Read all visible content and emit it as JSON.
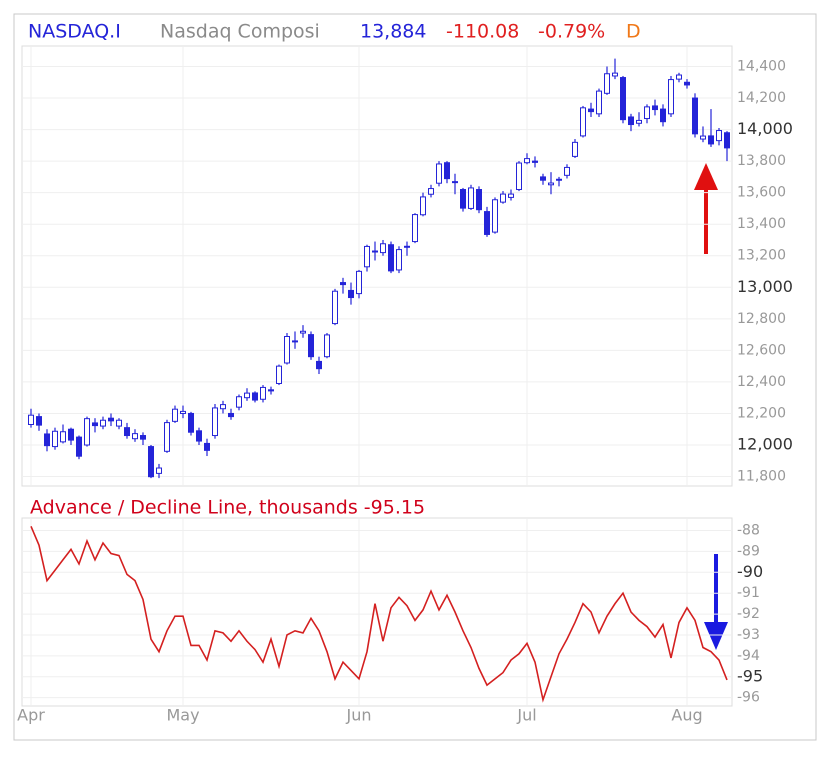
{
  "header": {
    "symbol": "NASDAQ.I",
    "name": "Nasdaq Composi",
    "last": "13,884",
    "change": "-110.08",
    "change_pct": "-0.79%",
    "interval": "D"
  },
  "chart_data": [
    {
      "type": "candlestick",
      "color": "#2424d8",
      "grid": true,
      "open": [
        12130,
        12180,
        12070,
        11990,
        12020,
        12100,
        12050,
        12000,
        12140,
        12120,
        12170,
        12120,
        12110,
        12040,
        12060,
        11990,
        11820,
        11960,
        12150,
        12200,
        12200,
        12090,
        12010,
        12060,
        12230,
        12200,
        12240,
        12300,
        12330,
        12290,
        12350,
        12390,
        12520,
        12660,
        12710,
        12700,
        12530,
        12560,
        12770,
        13030,
        12980,
        12960,
        13130,
        13230,
        13220,
        13270,
        13110,
        13260,
        13290,
        13460,
        13590,
        13660,
        13790,
        13670,
        13620,
        13500,
        13620,
        13480,
        13350,
        13540,
        13570,
        13620,
        13790,
        13800,
        13700,
        13650,
        13680,
        13710,
        13830,
        13960,
        14130,
        14100,
        14230,
        14340,
        14330,
        14080,
        14040,
        14070,
        14150,
        14130,
        14100,
        14320,
        14300,
        14200,
        13940,
        13960,
        13930,
        13980
      ],
      "high": [
        12230,
        12200,
        12100,
        12110,
        12130,
        12110,
        12060,
        12180,
        12170,
        12180,
        12200,
        12170,
        12140,
        12100,
        12080,
        12000,
        11880,
        12160,
        12250,
        12250,
        12210,
        12110,
        12040,
        12260,
        12280,
        12230,
        12320,
        12360,
        12340,
        12380,
        12370,
        12510,
        12710,
        12720,
        12760,
        12720,
        12560,
        12710,
        12990,
        13060,
        13030,
        13110,
        13270,
        13290,
        13300,
        13290,
        13260,
        13290,
        13470,
        13600,
        13650,
        13800,
        13800,
        13720,
        13630,
        13650,
        13640,
        13510,
        13570,
        13610,
        13620,
        13800,
        13850,
        13830,
        13720,
        13730,
        13700,
        13780,
        13940,
        14150,
        14170,
        14260,
        14400,
        14450,
        14340,
        14100,
        14110,
        14160,
        14190,
        14160,
        14340,
        14360,
        14320,
        14230,
        14020,
        14130,
        14010,
        13990
      ],
      "low": [
        12110,
        12090,
        11960,
        11970,
        12010,
        12000,
        11910,
        11990,
        12080,
        12100,
        12120,
        12100,
        12040,
        12020,
        12000,
        11790,
        11790,
        11950,
        12140,
        12170,
        12060,
        12000,
        11930,
        12040,
        12200,
        12160,
        12220,
        12280,
        12270,
        12270,
        12320,
        12380,
        12510,
        12610,
        12680,
        12540,
        12450,
        12550,
        12760,
        12960,
        12890,
        12930,
        13100,
        13170,
        13200,
        13090,
        13090,
        13200,
        13280,
        13450,
        13570,
        13640,
        13660,
        13590,
        13480,
        13490,
        13470,
        13320,
        13340,
        13530,
        13550,
        13610,
        13780,
        13760,
        13650,
        13590,
        13640,
        13690,
        13820,
        13950,
        14080,
        14080,
        14220,
        14320,
        14040,
        13990,
        14020,
        14040,
        14090,
        14020,
        14080,
        14300,
        14260,
        13950,
        13920,
        13890,
        13900,
        13800
      ],
      "close": [
        12189,
        12126,
        11996,
        12087,
        12084,
        12031,
        11929,
        12167,
        12123,
        12157,
        12153,
        12157,
        12060,
        12072,
        12037,
        11799,
        11854,
        12142,
        12227,
        12213,
        12081,
        12025,
        11966,
        12235,
        12256,
        12180,
        12306,
        12329,
        12285,
        12365,
        12343,
        12500,
        12688,
        12658,
        12721,
        12560,
        12484,
        12698,
        12975,
        13017,
        12935,
        13101,
        13259,
        13230,
        13276,
        13104,
        13239,
        13259,
        13461,
        13573,
        13626,
        13782,
        13689,
        13667,
        13502,
        13630,
        13492,
        13335,
        13555,
        13591,
        13591,
        13788,
        13816,
        13792,
        13679,
        13661,
        13685,
        13760,
        13919,
        14138,
        14114,
        14244,
        14354,
        14358,
        14063,
        14032,
        14058,
        14144,
        14127,
        14050,
        14317,
        14346,
        14283,
        13973,
        13959,
        13909,
        13994,
        13884
      ],
      "ylim": [
        11740,
        14530
      ],
      "yticks": [
        {
          "value": 11800,
          "label": "11,800"
        },
        {
          "value": 12000,
          "label": "12,000"
        },
        {
          "value": 12200,
          "label": "12,200"
        },
        {
          "value": 12400,
          "label": "12,400"
        },
        {
          "value": 12600,
          "label": "12,600"
        },
        {
          "value": 12800,
          "label": "12,800"
        },
        {
          "value": 13000,
          "label": "13,000"
        },
        {
          "value": 13200,
          "label": "13,200"
        },
        {
          "value": 13400,
          "label": "13,400"
        },
        {
          "value": 13600,
          "label": "13,600"
        },
        {
          "value": 13800,
          "label": "13,800"
        },
        {
          "value": 14000,
          "label": "14,000"
        },
        {
          "value": 14200,
          "label": "14,200"
        },
        {
          "value": 14400,
          "label": "14,400"
        }
      ]
    },
    {
      "type": "line",
      "title": "Advance / Decline Line, thousands -95.15",
      "color": "#d42020",
      "grid": true,
      "categories": [
        "Apr",
        null,
        null,
        null,
        null,
        null,
        null,
        null,
        null,
        null,
        null,
        null,
        null,
        null,
        null,
        null,
        null,
        null,
        null,
        "May",
        null,
        null,
        null,
        null,
        null,
        null,
        null,
        null,
        null,
        null,
        null,
        null,
        null,
        null,
        null,
        null,
        null,
        null,
        null,
        null,
        null,
        "Jun",
        null,
        null,
        null,
        null,
        null,
        null,
        null,
        null,
        null,
        null,
        null,
        null,
        null,
        null,
        null,
        null,
        null,
        null,
        null,
        null,
        "Jul",
        null,
        null,
        null,
        null,
        null,
        null,
        null,
        null,
        null,
        null,
        null,
        null,
        null,
        null,
        null,
        null,
        null,
        null,
        null,
        "Aug",
        null,
        null,
        null,
        null,
        null
      ],
      "values": [
        -87.8,
        -88.7,
        -90.4,
        -89.9,
        -89.4,
        -88.9,
        -89.6,
        -88.5,
        -89.4,
        -88.6,
        -89.1,
        -89.2,
        -90.1,
        -90.4,
        -91.3,
        -93.2,
        -93.8,
        -92.8,
        -92.1,
        -92.1,
        -93.5,
        -93.5,
        -94.2,
        -92.8,
        -92.9,
        -93.3,
        -92.8,
        -93.3,
        -93.7,
        -94.3,
        -93.2,
        -94.5,
        -93.0,
        -92.8,
        -92.9,
        -92.2,
        -92.8,
        -93.8,
        -95.1,
        -94.3,
        -94.7,
        -95.1,
        -93.8,
        -91.5,
        -93.3,
        -91.7,
        -91.2,
        -91.6,
        -92.3,
        -91.8,
        -90.9,
        -91.8,
        -91.1,
        -91.9,
        -92.8,
        -93.6,
        -94.6,
        -95.4,
        -95.1,
        -94.8,
        -94.2,
        -93.9,
        -93.4,
        -94.3,
        -96.1,
        -95.0,
        -93.9,
        -93.2,
        -92.4,
        -91.5,
        -91.9,
        -92.9,
        -92.1,
        -91.5,
        -91.0,
        -91.9,
        -92.3,
        -92.6,
        -93.1,
        -92.5,
        -94.1,
        -92.4,
        -91.7,
        -92.3,
        -93.6,
        -93.8,
        -94.2,
        -95.15
      ],
      "ylim": [
        -96.4,
        -87.4
      ],
      "yticks": [
        -88,
        -89,
        -90,
        -91,
        -92,
        -93,
        -94,
        -95,
        -96
      ]
    }
  ]
}
